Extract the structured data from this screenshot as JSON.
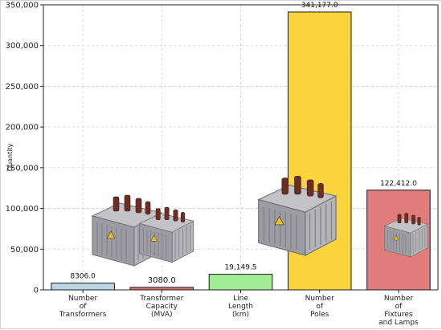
{
  "chart_data": {
    "type": "bar",
    "title": "",
    "xlabel": "",
    "ylabel": "Quantity",
    "ylim": [
      0,
      350000
    ],
    "yticks": [
      0,
      50000,
      100000,
      150000,
      200000,
      250000,
      300000,
      350000
    ],
    "ytick_labels": [
      "0",
      "50,000",
      "100,000",
      "150,000",
      "200,000",
      "250,000",
      "300,000",
      "350,000"
    ],
    "grid": true,
    "categories": [
      [
        "Number",
        "of",
        "Transformers"
      ],
      [
        "Transformer",
        "Capacity",
        "(MVA)"
      ],
      [
        "Line",
        "Length",
        "(km)"
      ],
      [
        "Number",
        "of",
        "Poles"
      ],
      [
        "Number",
        "of",
        "Fixtures",
        "and Lamps"
      ]
    ],
    "values": [
      8306.0,
      3080.0,
      19149.5,
      341177.0,
      122412.0
    ],
    "value_labels": [
      "8306.0",
      "3080.0",
      "19,149.5",
      "341,177.0",
      "122,412.0"
    ],
    "colors": [
      "#b9d5e6",
      "#e07070",
      "#a2ec95",
      "#fad43c",
      "#e07c7c"
    ]
  },
  "decorations": {
    "image_icon": "transformer-icon"
  }
}
